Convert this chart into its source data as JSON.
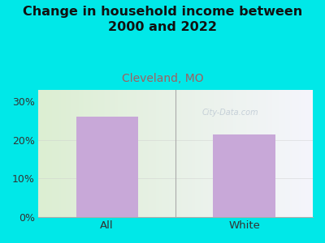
{
  "categories": [
    "All",
    "White"
  ],
  "values": [
    26.0,
    21.5
  ],
  "bar_color": "#c8a8d8",
  "title_line1": "Change in household income between",
  "title_line2": "2000 and 2022",
  "subtitle": "Cleveland, MO",
  "title_fontsize": 11.5,
  "subtitle_fontsize": 10,
  "ylabel_ticks": [
    "0%",
    "10%",
    "20%",
    "30%"
  ],
  "ytick_vals": [
    0,
    10,
    20,
    30
  ],
  "ylim": [
    0,
    33
  ],
  "background_outer": "#00e8e8",
  "watermark": "City-Data.com",
  "bar_width": 0.45,
  "title_color": "#111111",
  "subtitle_color": "#a06060"
}
